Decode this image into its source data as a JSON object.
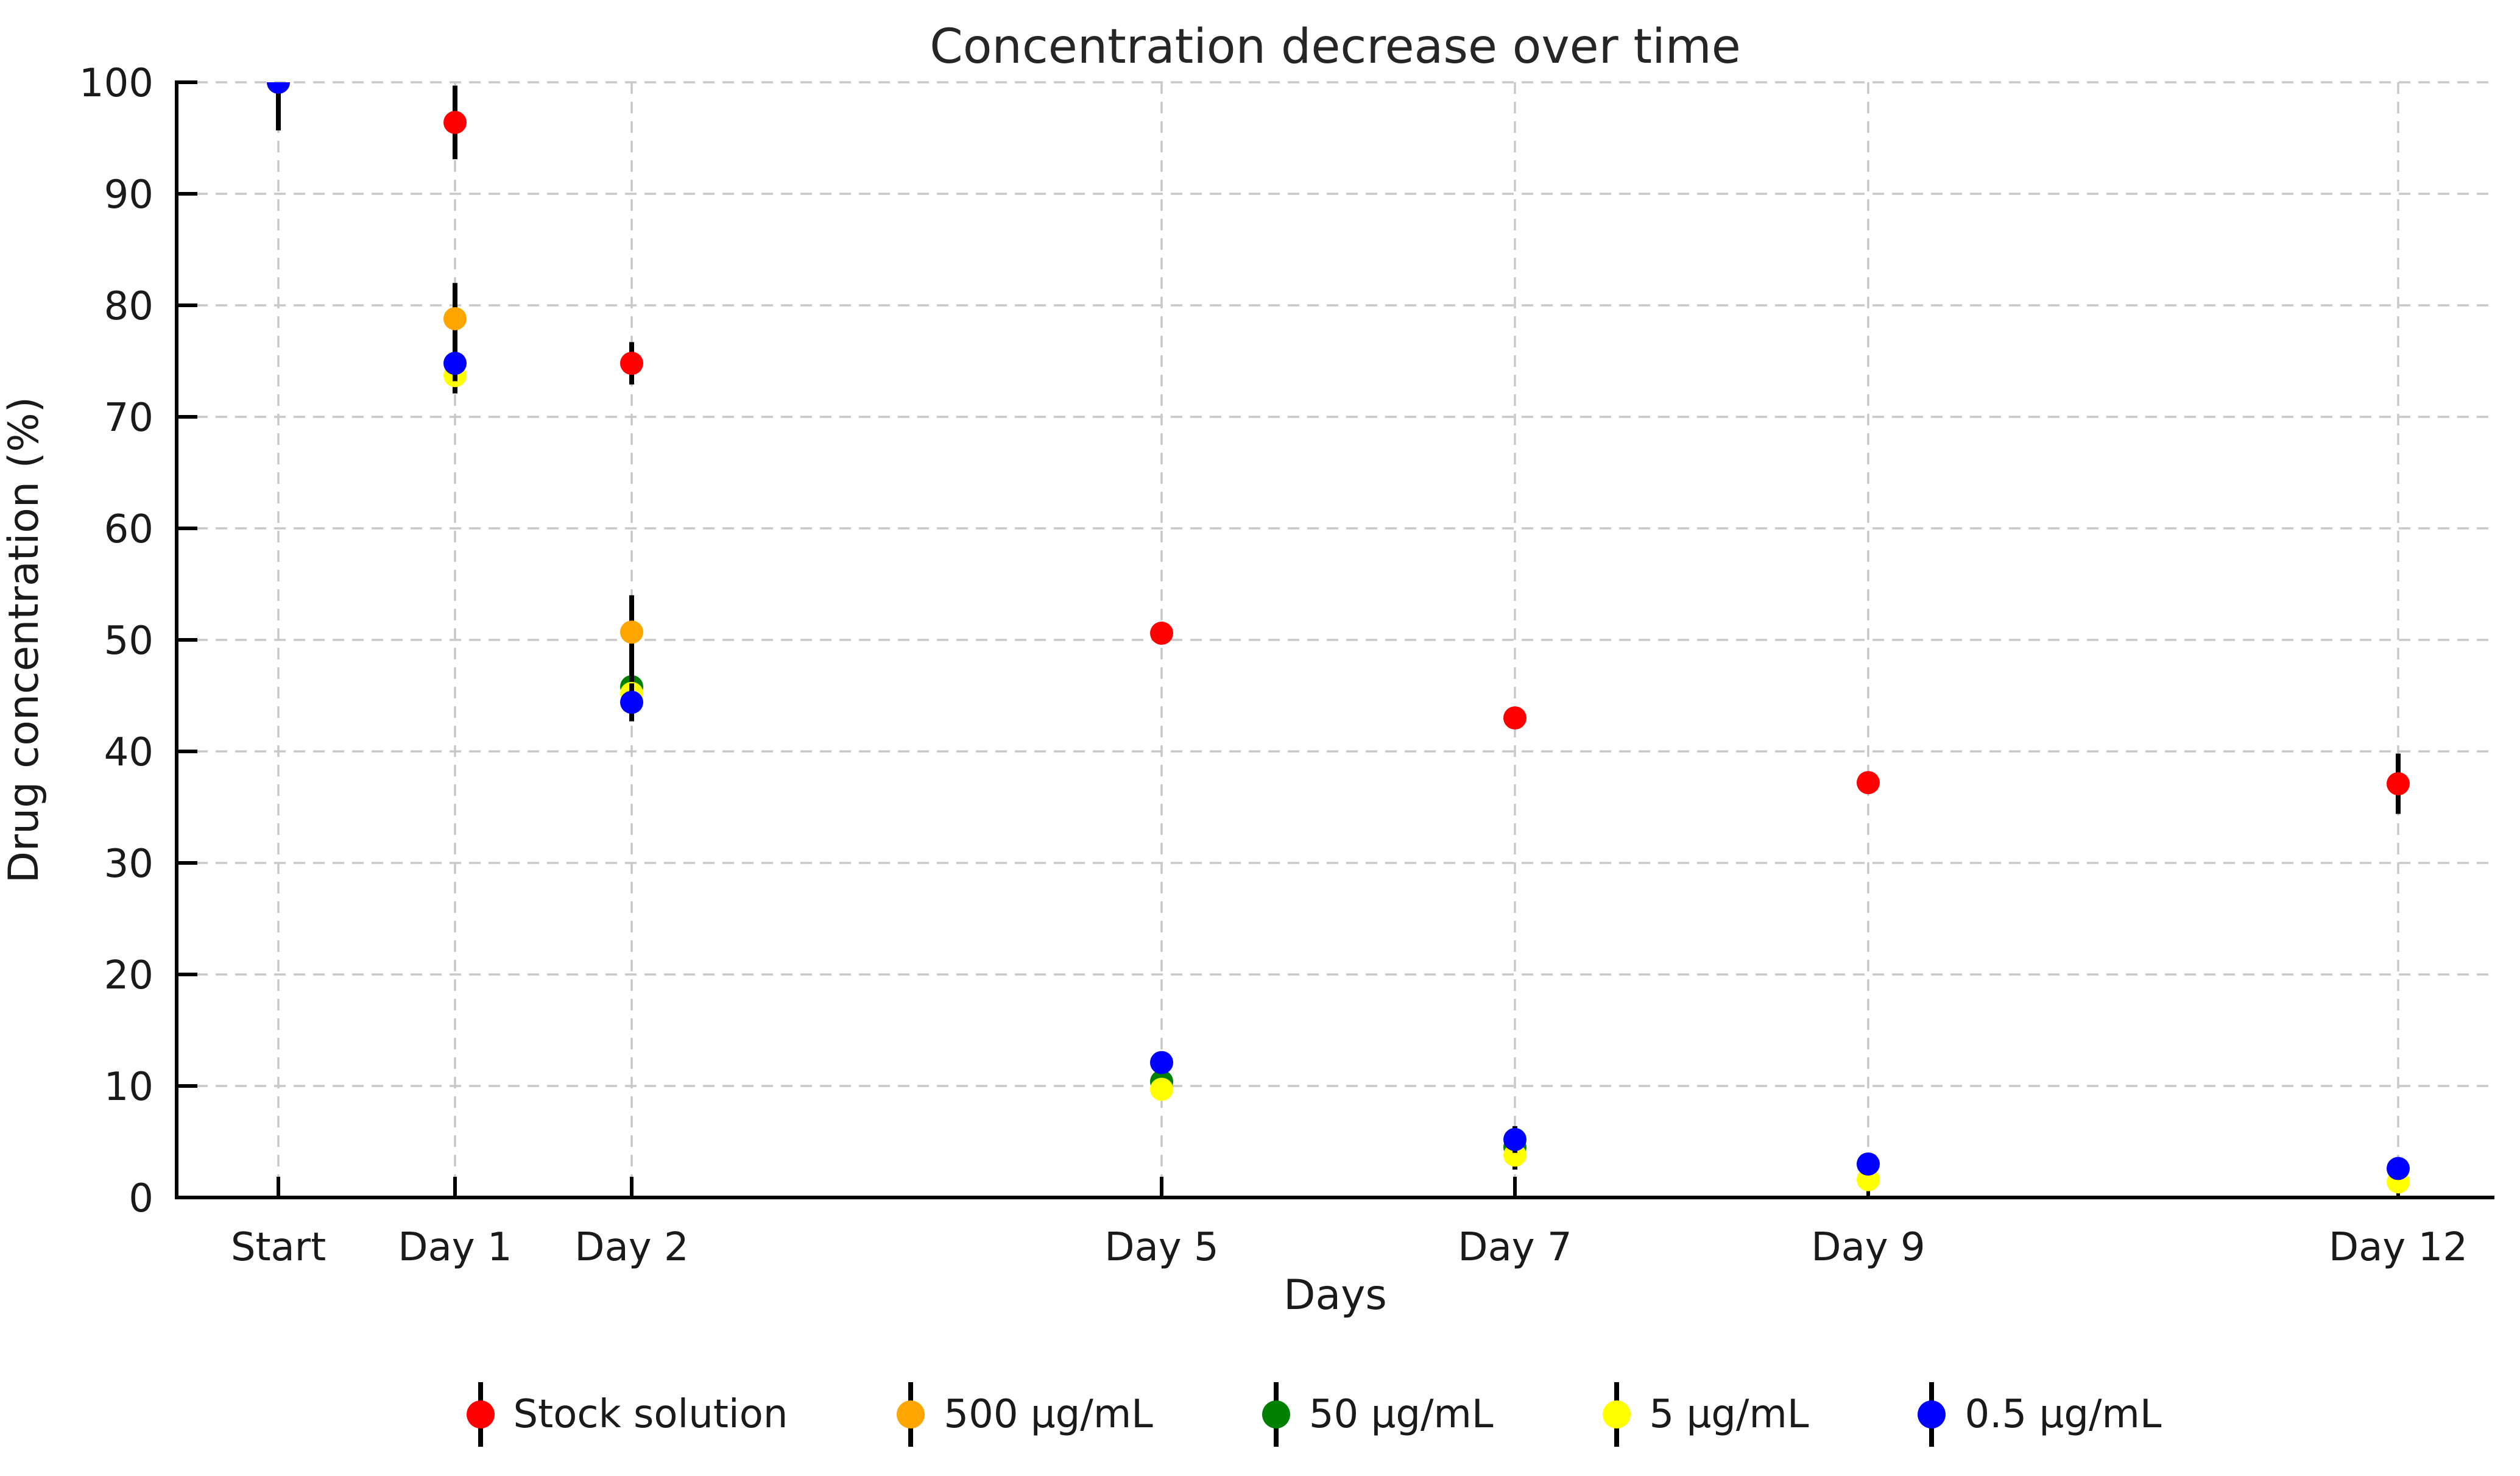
{
  "chart_data": {
    "type": "scatter",
    "title": "Concentration decrease over time",
    "xlabel": "Days",
    "ylabel": "Drug concentration (%)",
    "categories": [
      "Start",
      "Day 1",
      "Day 2",
      "Day 5",
      "Day 7",
      "Day 9",
      "Day 12"
    ],
    "x_days": [
      0,
      1,
      2,
      5,
      7,
      9,
      12
    ],
    "ylim": [
      0,
      100
    ],
    "yticks": [
      0,
      10,
      20,
      30,
      40,
      50,
      60,
      70,
      80,
      90,
      100
    ],
    "grid": "dashed-both-axes",
    "legend_position": "bottom-center",
    "marker": "circle-with-error-bars",
    "colors": {
      "grid": "#c8c8c8",
      "axis": "#000000",
      "text": "#1a1a1a",
      "error_bar": "#000000"
    },
    "series": [
      {
        "name": "Stock solution",
        "color": "#ff0000",
        "values": [
          100,
          96.4,
          74.8,
          50.6,
          43.0,
          37.2,
          37.1
        ],
        "errors": [
          4.3,
          3.3,
          1.9,
          0.6,
          0.6,
          0.6,
          2.7
        ]
      },
      {
        "name": "500 µg/mL",
        "color": "#ffa500",
        "values": [
          100,
          78.8,
          50.7,
          null,
          null,
          null,
          null
        ],
        "errors": [
          4.3,
          3.2,
          3.3,
          null,
          null,
          null,
          null
        ]
      },
      {
        "name": "50 µg/mL",
        "color": "#008000",
        "values": [
          100,
          null,
          45.8,
          10.4,
          4.5,
          null,
          null
        ],
        "errors": [
          4.3,
          null,
          1.7,
          0.7,
          0.8,
          null,
          null
        ]
      },
      {
        "name": "5 µg/mL",
        "color": "#ffff00",
        "values": [
          100,
          73.7,
          45.2,
          9.7,
          3.8,
          1.6,
          1.4
        ],
        "errors": [
          4.3,
          1.6,
          1.7,
          0.8,
          1.3,
          0.7,
          0.6
        ]
      },
      {
        "name": "0.5 µg/mL",
        "color": "#0000ff",
        "values": [
          100,
          74.8,
          44.4,
          12.1,
          5.2,
          3.0,
          2.6
        ],
        "errors": [
          4.3,
          1.6,
          1.7,
          0.9,
          1.2,
          0.8,
          0.7
        ]
      }
    ]
  }
}
